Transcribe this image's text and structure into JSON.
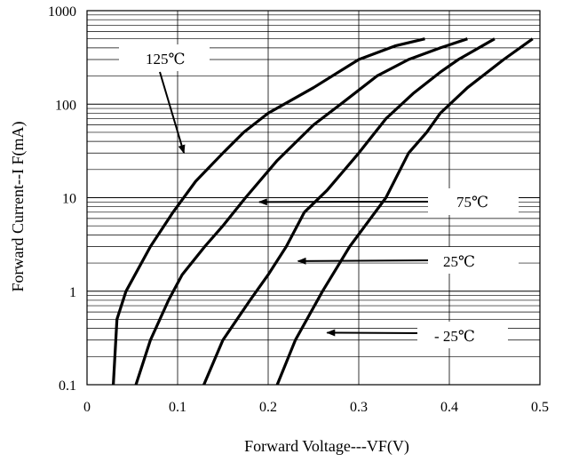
{
  "chart_data": {
    "type": "line",
    "title": "",
    "xlabel": "Forward Voltage---VF(V)",
    "ylabel": "Forward Current--I F(mA)",
    "xlim": [
      0,
      0.5
    ],
    "ylim": [
      0.1,
      1000
    ],
    "y_scale": "log",
    "grid": true,
    "x_ticks": [
      "0",
      "0.1",
      "0.2",
      "0.3",
      "0.4",
      "0.5"
    ],
    "y_ticks": [
      "0.1",
      "1",
      "10",
      "100",
      "1000"
    ],
    "series": [
      {
        "name": "125℃",
        "points": [
          [
            0.029,
            0.1
          ],
          [
            0.033,
            0.5
          ],
          [
            0.043,
            1
          ],
          [
            0.07,
            3
          ],
          [
            0.095,
            7
          ],
          [
            0.12,
            15
          ],
          [
            0.15,
            30
          ],
          [
            0.173,
            50
          ],
          [
            0.2,
            80
          ],
          [
            0.25,
            150
          ],
          [
            0.3,
            300
          ],
          [
            0.34,
            420
          ],
          [
            0.373,
            500
          ]
        ]
      },
      {
        "name": "75℃",
        "points": [
          [
            0.054,
            0.1
          ],
          [
            0.07,
            0.3
          ],
          [
            0.09,
            0.8
          ],
          [
            0.105,
            1.5
          ],
          [
            0.13,
            3
          ],
          [
            0.15,
            5
          ],
          [
            0.175,
            10
          ],
          [
            0.21,
            25
          ],
          [
            0.25,
            60
          ],
          [
            0.28,
            100
          ],
          [
            0.32,
            200
          ],
          [
            0.355,
            300
          ],
          [
            0.39,
            400
          ],
          [
            0.42,
            500
          ]
        ]
      },
      {
        "name": "25℃",
        "points": [
          [
            0.129,
            0.1
          ],
          [
            0.15,
            0.3
          ],
          [
            0.18,
            0.8
          ],
          [
            0.2,
            1.5
          ],
          [
            0.22,
            3
          ],
          [
            0.24,
            7
          ],
          [
            0.265,
            12
          ],
          [
            0.3,
            30
          ],
          [
            0.33,
            70
          ],
          [
            0.36,
            130
          ],
          [
            0.39,
            220
          ],
          [
            0.41,
            300
          ],
          [
            0.45,
            500
          ]
        ]
      },
      {
        "name": "- 25℃",
        "points": [
          [
            0.21,
            0.1
          ],
          [
            0.23,
            0.3
          ],
          [
            0.26,
            1
          ],
          [
            0.29,
            3
          ],
          [
            0.33,
            10
          ],
          [
            0.355,
            30
          ],
          [
            0.375,
            50
          ],
          [
            0.39,
            80
          ],
          [
            0.42,
            150
          ],
          [
            0.46,
            300
          ],
          [
            0.492,
            500
          ]
        ]
      }
    ],
    "annotations": [
      {
        "text": "125℃",
        "series_index": 0,
        "arrow_to": [
          0.107,
          30
        ]
      },
      {
        "text": "75℃",
        "series_index": 1,
        "arrow_to": [
          0.19,
          9
        ]
      },
      {
        "text": "25℃",
        "series_index": 2,
        "arrow_to": [
          0.233,
          2.1
        ]
      },
      {
        "text": "- 25℃",
        "series_index": 3,
        "arrow_to": [
          0.265,
          0.36
        ]
      }
    ]
  }
}
